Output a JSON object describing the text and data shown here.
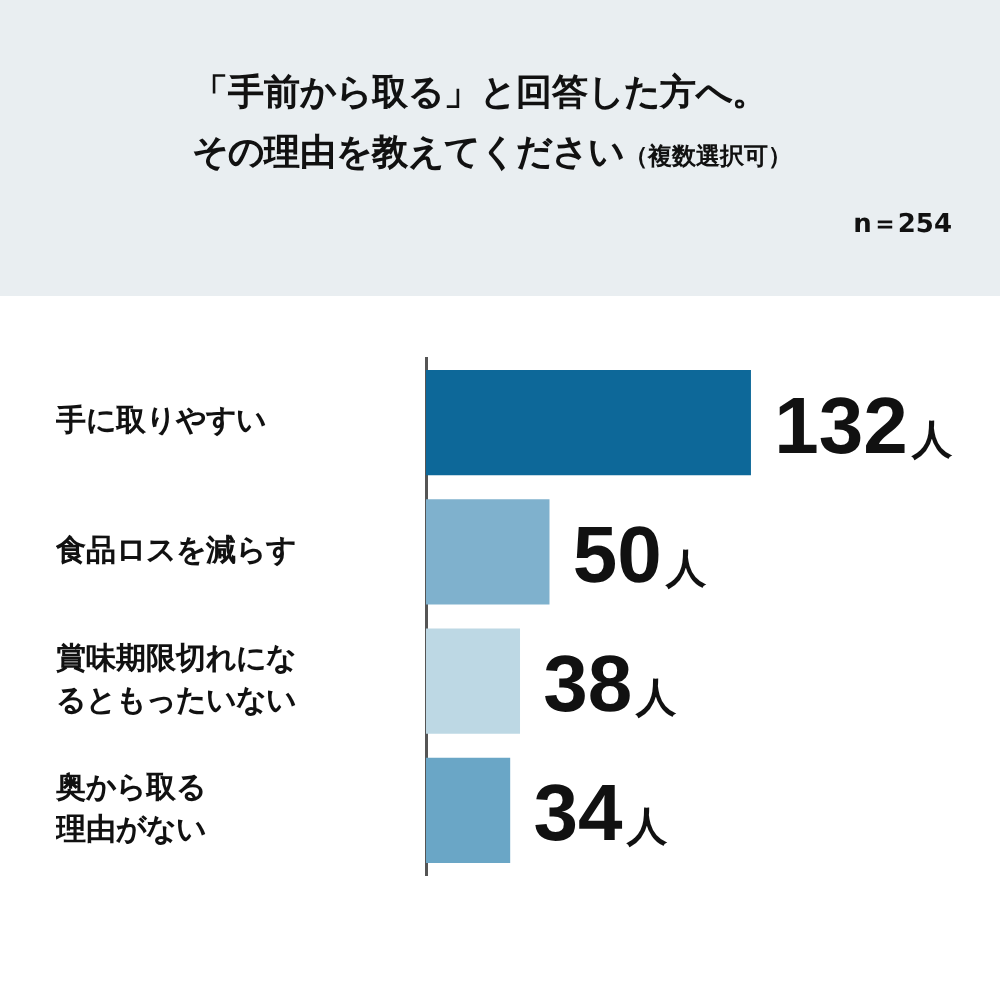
{
  "chart_data": {
    "type": "bar",
    "orientation": "horizontal",
    "title": "「手前から取る」と回答した方へ。その理由を教えてください",
    "subtitle": "（複数選択可）",
    "annotations": [
      "n＝254"
    ],
    "categories": [
      "手に取りやすい",
      "食品ロスを減らす",
      "賞味期限切れになるともったいない",
      "奥から取る理由がない"
    ],
    "values": [
      132,
      50,
      38,
      34
    ],
    "colors": [
      "#0d6899",
      "#7fb1cd",
      "#bdd8e4",
      "#6aa6c6"
    ],
    "value_labels": [
      "132人",
      "50人",
      "38人",
      "34人"
    ],
    "legend": false,
    "grid": false
  }
}
